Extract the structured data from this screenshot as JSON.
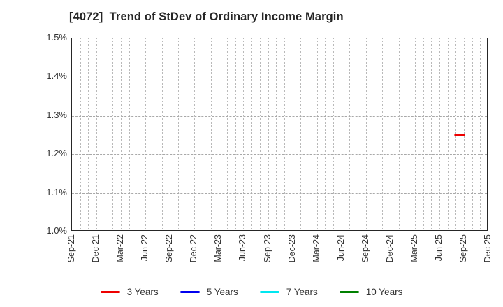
{
  "chart_data": {
    "type": "line",
    "title": "[4072]  Trend of StDev of Ordinary Income Margin",
    "ylabel": "",
    "unit": "%",
    "ylim": [
      1.0,
      1.5
    ],
    "y_ticks": [
      "1.0%",
      "1.1%",
      "1.2%",
      "1.3%",
      "1.4%",
      "1.5%"
    ],
    "x_start": "Sep-21",
    "x_end": "Dec-25",
    "x_tick_interval_months": 3,
    "x_tick_labels": [
      "Sep-21",
      "Dec-21",
      "Mar-22",
      "Jun-22",
      "Sep-22",
      "Dec-22",
      "Mar-23",
      "Jun-23",
      "Sep-23",
      "Dec-23",
      "Mar-24",
      "Jun-24",
      "Sep-24",
      "Dec-24",
      "Mar-25",
      "Jun-25",
      "Sep-25",
      "Dec-25"
    ],
    "grid": {
      "vertical": "dotted, monthly",
      "horizontal": "dashed, every 0.1%"
    },
    "series": [
      {
        "name": "3 Years",
        "color": "#ee0000",
        "points": [
          {
            "x": "Aug-25",
            "y": 1.25
          },
          {
            "x": "Sep-25",
            "y": 1.25
          }
        ]
      },
      {
        "name": "5 Years",
        "color": "#0000ee",
        "points": []
      },
      {
        "name": "7 Years",
        "color": "#00e7f0",
        "points": []
      },
      {
        "name": "10 Years",
        "color": "#008000",
        "points": []
      }
    ],
    "legend": {
      "position": "bottom",
      "items": [
        "3 Years",
        "5 Years",
        "7 Years",
        "10 Years"
      ]
    }
  }
}
